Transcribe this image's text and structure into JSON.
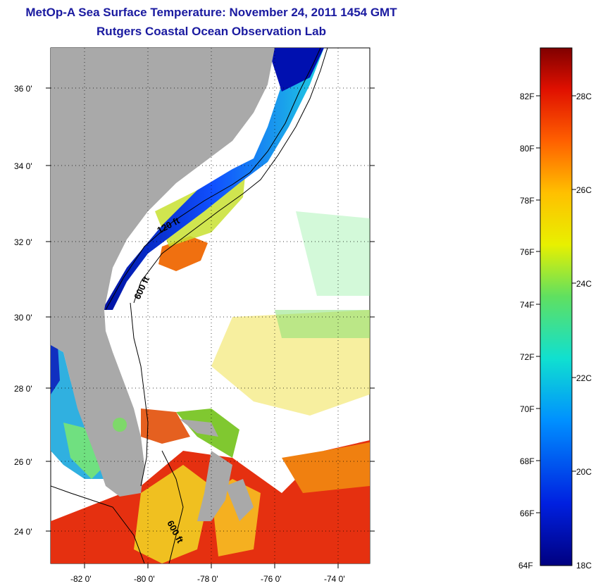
{
  "title": "MetOp-A Sea Surface Temperature:  November 24, 2011 1454 GMT",
  "subtitle": "Rutgers Coastal Ocean Observation Lab",
  "map": {
    "lat_ticks": [
      "36 0'",
      "34 0'",
      "32 0'",
      "30 0'",
      "28 0'",
      "26 0'",
      "24 0'"
    ],
    "lon_ticks": [
      "-82 0'",
      "-80 0'",
      "-78 0'",
      "-76 0'",
      "-74 0'"
    ],
    "contour_labels": [
      "120 ft",
      "600 ft",
      "600 ft"
    ],
    "land_color": "#a9a9a9",
    "ocean_colors": {
      "cold": "#1020c0",
      "warm": "#e02010",
      "mid": "#f0d020"
    }
  },
  "colorbar": {
    "fahrenheit_labels": [
      "82F",
      "80F",
      "78F",
      "76F",
      "74F",
      "72F",
      "70F",
      "68F",
      "66F",
      "64F"
    ],
    "celsius_labels": [
      "28C",
      "26C",
      "24C",
      "22C",
      "20C",
      "18C"
    ]
  }
}
